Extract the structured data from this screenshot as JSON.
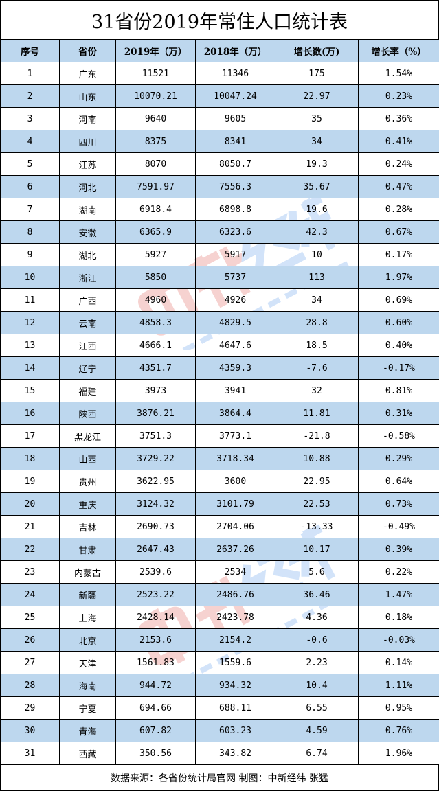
{
  "title": "31省份2019年常住人口统计表",
  "columns": [
    "序号",
    "省份",
    "2019年（万）",
    "2018年（万）",
    "增长数(万)",
    "增长率（%）"
  ],
  "rows": [
    [
      "1",
      "广东",
      "11521",
      "11346",
      "175",
      "1.54%"
    ],
    [
      "2",
      "山东",
      "10070.21",
      "10047.24",
      "22.97",
      "0.23%"
    ],
    [
      "3",
      "河南",
      "9640",
      "9605",
      "35",
      "0.36%"
    ],
    [
      "4",
      "四川",
      "8375",
      "8341",
      "34",
      "0.41%"
    ],
    [
      "5",
      "江苏",
      "8070",
      "8050.7",
      "19.3",
      "0.24%"
    ],
    [
      "6",
      "河北",
      "7591.97",
      "7556.3",
      "35.67",
      "0.47%"
    ],
    [
      "7",
      "湖南",
      "6918.4",
      "6898.8",
      "19.6",
      "0.28%"
    ],
    [
      "8",
      "安徽",
      "6365.9",
      "6323.6",
      "42.3",
      "0.67%"
    ],
    [
      "9",
      "湖北",
      "5927",
      "5917",
      "10",
      "0.17%"
    ],
    [
      "10",
      "浙江",
      "5850",
      "5737",
      "113",
      "1.97%"
    ],
    [
      "11",
      "广西",
      "4960",
      "4926",
      "34",
      "0.69%"
    ],
    [
      "12",
      "云南",
      "4858.3",
      "4829.5",
      "28.8",
      "0.60%"
    ],
    [
      "13",
      "江西",
      "4666.1",
      "4647.6",
      "18.5",
      "0.40%"
    ],
    [
      "14",
      "辽宁",
      "4351.7",
      "4359.3",
      "-7.6",
      "-0.17%"
    ],
    [
      "15",
      "福建",
      "3973",
      "3941",
      "32",
      "0.81%"
    ],
    [
      "16",
      "陕西",
      "3876.21",
      "3864.4",
      "11.81",
      "0.31%"
    ],
    [
      "17",
      "黑龙江",
      "3751.3",
      "3773.1",
      "-21.8",
      "-0.58%"
    ],
    [
      "18",
      "山西",
      "3729.22",
      "3718.34",
      "10.88",
      "0.29%"
    ],
    [
      "19",
      "贵州",
      "3622.95",
      "3600",
      "22.95",
      "0.64%"
    ],
    [
      "20",
      "重庆",
      "3124.32",
      "3101.79",
      "22.53",
      "0.73%"
    ],
    [
      "21",
      "吉林",
      "2690.73",
      "2704.06",
      "-13.33",
      "-0.49%"
    ],
    [
      "22",
      "甘肃",
      "2647.43",
      "2637.26",
      "10.17",
      "0.39%"
    ],
    [
      "23",
      "内蒙古",
      "2539.6",
      "2534",
      "5.6",
      "0.22%"
    ],
    [
      "24",
      "新疆",
      "2523.22",
      "2486.76",
      "36.46",
      "1.47%"
    ],
    [
      "25",
      "上海",
      "2428.14",
      "2423.78",
      "4.36",
      "0.18%"
    ],
    [
      "26",
      "北京",
      "2153.6",
      "2154.2",
      "-0.6",
      "-0.03%"
    ],
    [
      "27",
      "天津",
      "1561.83",
      "1559.6",
      "2.23",
      "0.14%"
    ],
    [
      "28",
      "海南",
      "944.72",
      "934.32",
      "10.4",
      "1.11%"
    ],
    [
      "29",
      "宁夏",
      "694.66",
      "688.11",
      "6.55",
      "0.95%"
    ],
    [
      "30",
      "青海",
      "607.82",
      "603.23",
      "4.59",
      "0.76%"
    ],
    [
      "31",
      "西藏",
      "350.56",
      "343.82",
      "6.74",
      "1.96%"
    ]
  ],
  "footer": "数据来源：各省份统计局官网  制图：中新经纬 张猛",
  "watermark": {
    "cn": "中新经纬",
    "en": "ECONOMIC VIEW"
  },
  "colors": {
    "header_bg": "#bdd7ee",
    "stripe_bg": "#bdd7ee",
    "watermark_red": "#e8807a",
    "watermark_blue": "#7fb0ee"
  }
}
